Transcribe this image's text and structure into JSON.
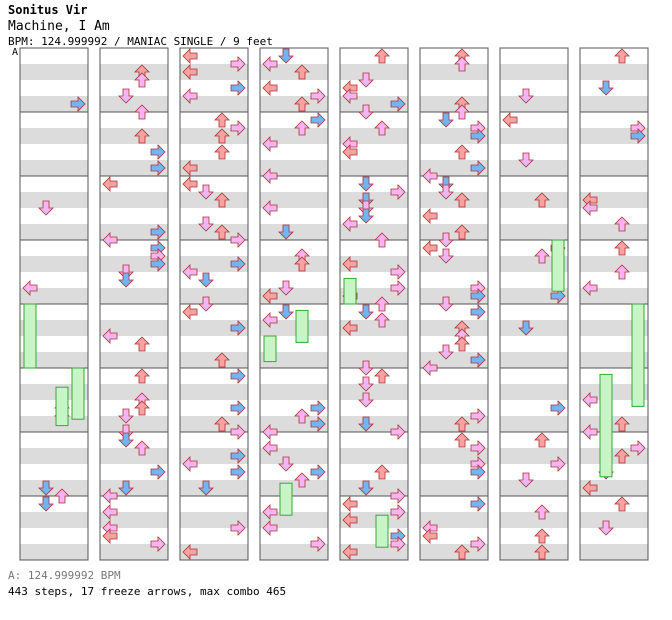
{
  "header": {
    "artist": "Sonitus Vir",
    "song_title": "Machine, I Am",
    "chart_info": "BPM: 124.999992 / MANIAC SINGLE / 9 feet",
    "bpm_marker": "A"
  },
  "footer": {
    "bpm_legend": "A: 124.999992 BPM",
    "summary": "443 steps, 17 freeze arrows, max combo 465"
  },
  "colors": {
    "left": "#f7a3a3",
    "down": "#74b4f5",
    "up": "#f7a3a3",
    "right": "#74b4f5",
    "offbeat": "#f5b5f5",
    "freeze": "#c8f5c8",
    "stripe": "#dcdcdc",
    "border": "#555555"
  },
  "chart_data": {
    "type": "step-chart",
    "columns": 8,
    "measures_per_column": 8,
    "lanes": [
      "left",
      "down",
      "up",
      "right"
    ],
    "steps": 443,
    "freeze_arrows": 17,
    "max_combo": 465,
    "bpm": 124.999992
  }
}
